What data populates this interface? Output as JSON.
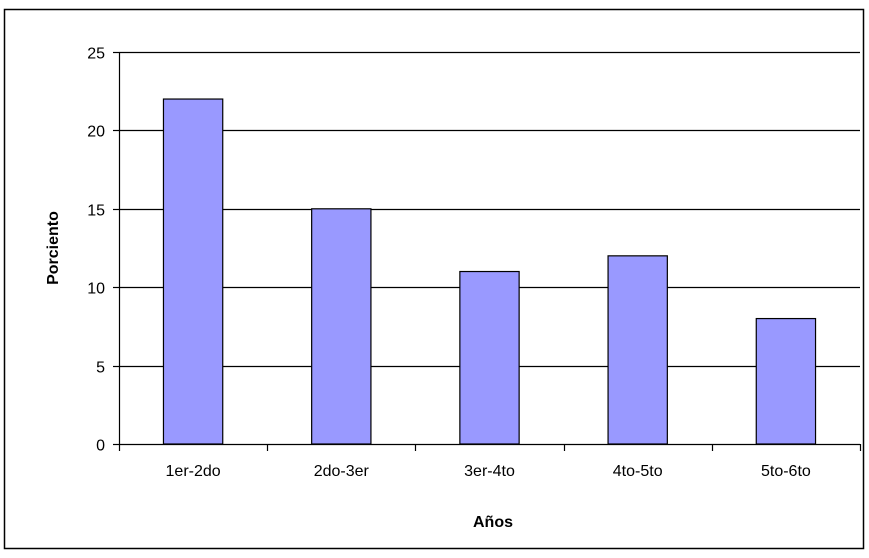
{
  "chart_data": {
    "type": "bar",
    "title": "",
    "xlabel": "Años",
    "ylabel": "Porciento",
    "categories": [
      "1er-2do",
      "2do-3er",
      "3er-4to",
      "4to-5to",
      "5to-6to"
    ],
    "values": [
      22,
      15,
      11,
      12,
      8
    ],
    "ylim": [
      0,
      25
    ],
    "yticks": [
      "0",
      "5",
      "10",
      "15",
      "20",
      "25"
    ],
    "grid": true,
    "legend": "none",
    "colors": {
      "bar_fill": "#9999ff",
      "bar_stroke": "#000000",
      "gridline": "#000000",
      "frame": "#000000"
    }
  }
}
